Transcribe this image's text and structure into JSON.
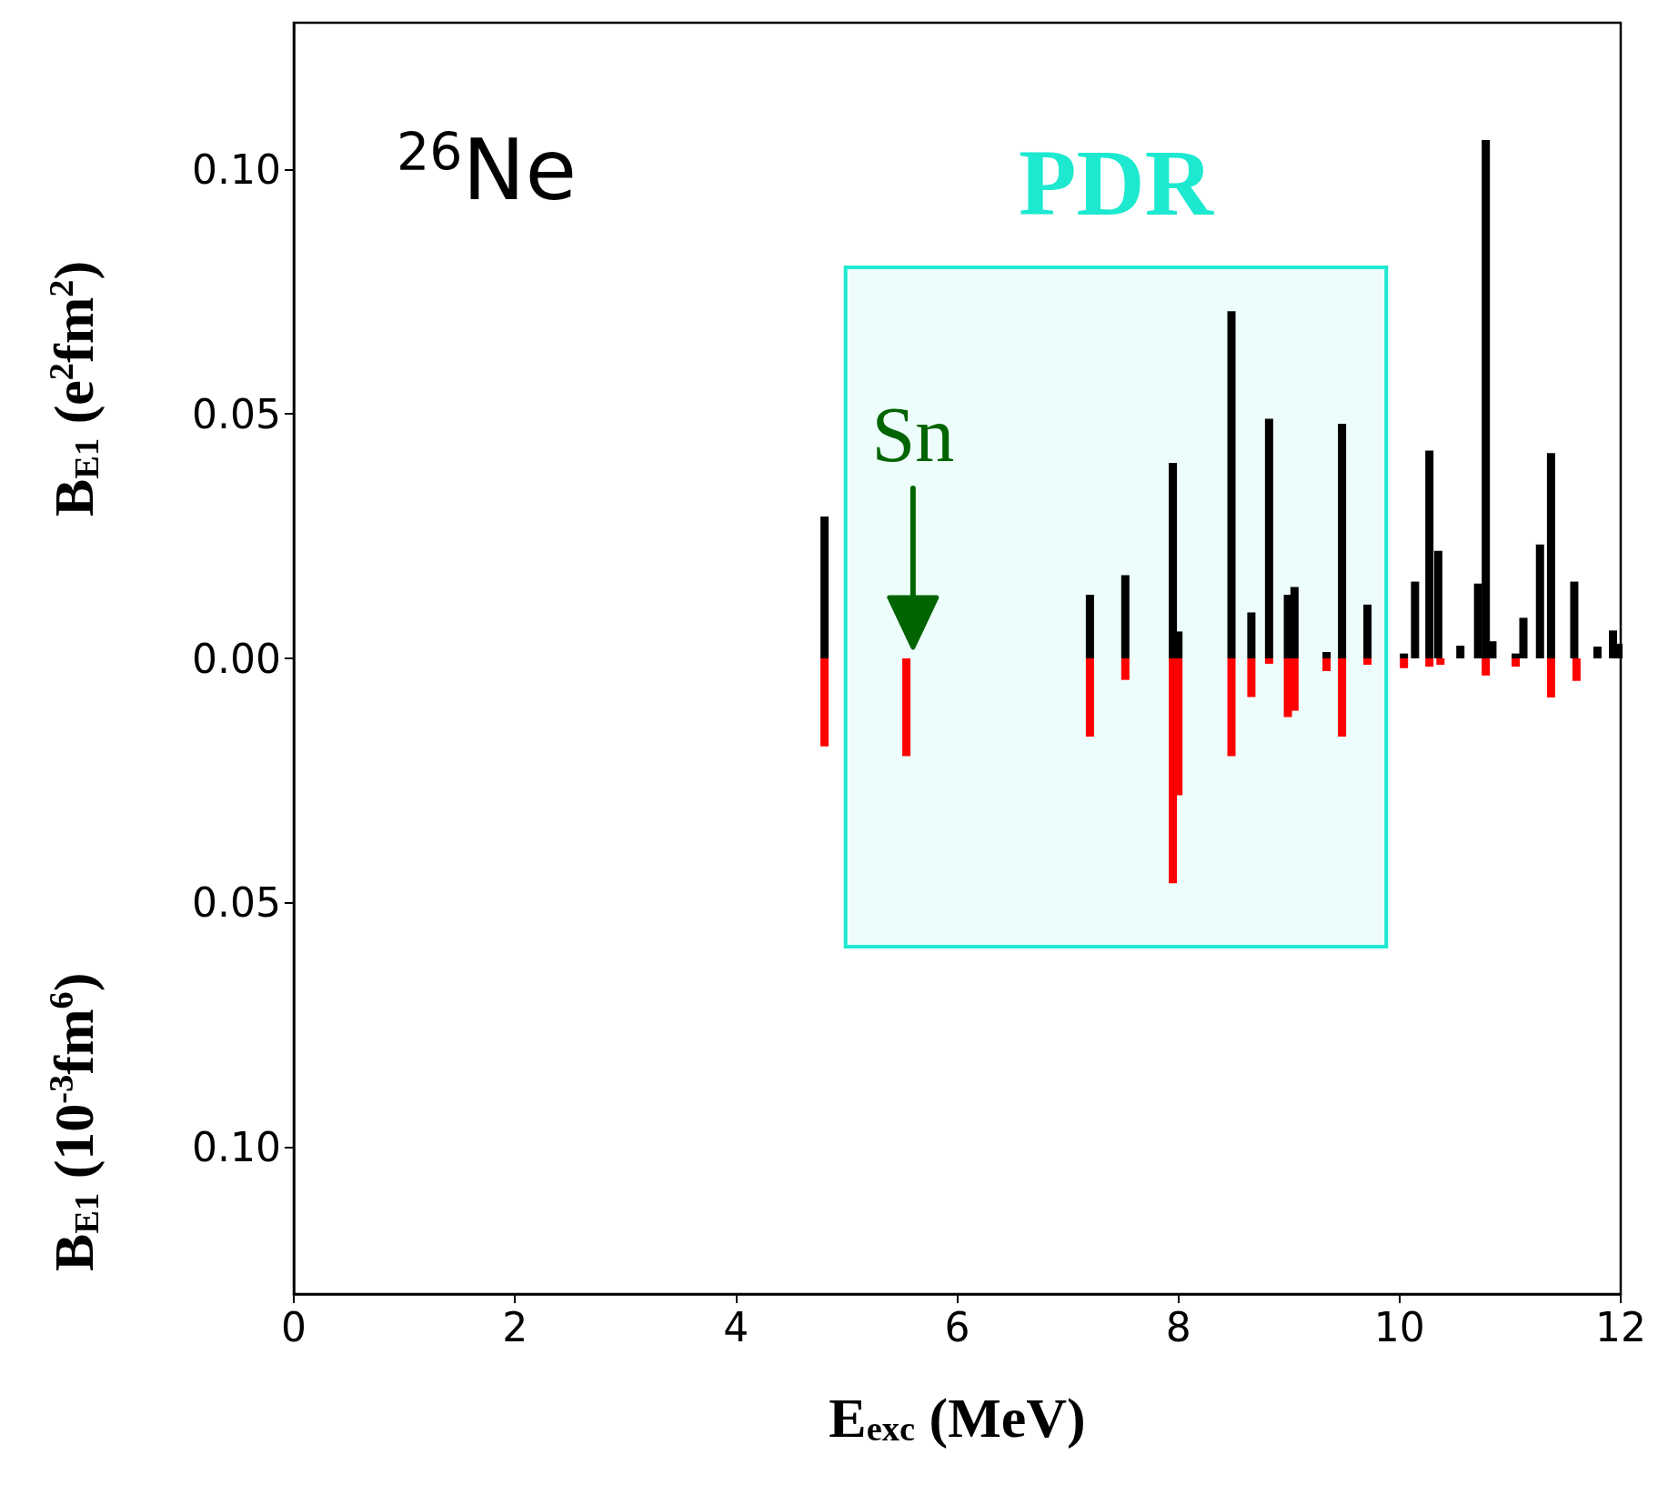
{
  "chart_data": {
    "type": "bar",
    "xlabel": "E$_{exc}$ (MeV)",
    "ylabel": "B$_{E1}$ (e$^{2}$fm$^{2}$)",
    "xlim": [
      0,
      12
    ],
    "xticks": [
      0,
      2,
      4,
      6,
      8,
      10,
      12
    ],
    "ylim": [
      -0.13,
      0.13
    ],
    "yticks": [
      {
        "value": 0.1,
        "label": "0.10"
      },
      {
        "value": 0.05,
        "label": "0.05"
      },
      {
        "value": 0,
        "label": "0.00"
      },
      {
        "value": -0.05,
        "label": "0.05"
      },
      {
        "value": -0.1,
        "label": "0.10"
      }
    ],
    "grid": false,
    "series": [
      {
        "color": "#000000",
        "x": [
          4.8,
          7.2,
          7.52,
          7.95,
          8.0,
          8.48,
          8.66,
          8.82,
          8.99,
          9.05,
          9.34,
          9.48,
          9.71,
          10.04,
          10.14,
          10.27,
          10.35,
          10.55,
          10.71,
          10.78,
          10.84,
          11.05,
          11.12,
          11.27,
          11.37,
          11.58,
          11.79,
          11.93,
          11.98
        ],
        "values": [
          0.029,
          0.013,
          0.017,
          0.04,
          0.0055,
          0.071,
          0.0094,
          0.049,
          0.013,
          0.0146,
          0.0013,
          0.048,
          0.011,
          0.001,
          0.0157,
          0.0425,
          0.022,
          0.0026,
          0.0153,
          0.106,
          0.0035,
          0.001,
          0.0083,
          0.0233,
          0.042,
          0.0157,
          0.0024,
          0.0057,
          0.003
        ]
      },
      {
        "color": "#ff0000",
        "x": [
          4.8,
          5.54,
          7.2,
          7.52,
          7.95,
          8.0,
          8.48,
          8.66,
          8.82,
          8.99,
          9.05,
          9.34,
          9.48,
          9.71,
          10.04,
          10.27,
          10.37,
          10.78,
          11.05,
          11.37,
          11.6
        ],
        "values": [
          -0.018,
          -0.02,
          -0.016,
          -0.0044,
          -0.046,
          -0.028,
          -0.02,
          -0.0079,
          -0.0011,
          -0.012,
          -0.0107,
          -0.0026,
          -0.016,
          -0.0013,
          -0.002,
          -0.0017,
          -0.0013,
          -0.0035,
          -0.0017,
          -0.008,
          -0.0046
        ]
      }
    ],
    "bands": [
      {
        "axis": "x",
        "from": 4.99,
        "to": 9.88,
        "label": "PDR",
        "color": "#1de9d0"
      }
    ],
    "annotations": [
      "$^{26}$Ne",
      "B$_{E1}$ (10$^{-3}$fm$^{6}$)",
      {
        "text": "Sn",
        "x": 5.6,
        "y": 0
      }
    ]
  }
}
